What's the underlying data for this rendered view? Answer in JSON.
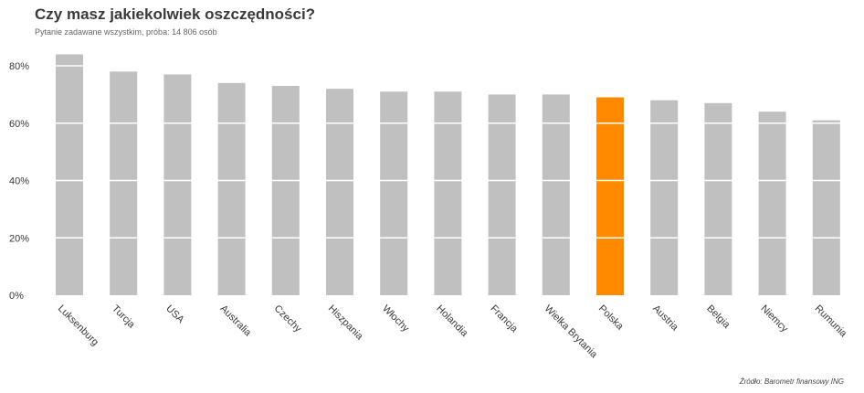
{
  "title": "Czy masz jakiekolwiek oszczędności?",
  "subtitle": "Pytanie zadawane wszystkim, próba: 14 806 osób",
  "source": "Źródło: Barometr finansowy ING",
  "colors": {
    "bar": "#c0c0c0",
    "highlight": "#ff8a00",
    "grid": "#ffffff",
    "text": "#3a3a3a"
  },
  "chart_data": {
    "type": "bar",
    "categories": [
      "Luksenburg",
      "Turcja",
      "USA",
      "Australia",
      "Czechy",
      "Hiszpania",
      "Włochy",
      "Holandia",
      "Francja",
      "Wielka Brytania",
      "Polska",
      "Austria",
      "Belgia",
      "Niemcy",
      "Rumunia"
    ],
    "values": [
      84,
      78,
      77,
      74,
      73,
      72,
      71,
      71,
      70,
      70,
      69,
      68,
      67,
      64,
      61
    ],
    "highlight": "Polska",
    "ylim": [
      0,
      80
    ],
    "yticks": [
      "0%",
      "20%",
      "40%",
      "60%",
      "80%"
    ],
    "grid": true,
    "xlabel": "",
    "ylabel": ""
  }
}
